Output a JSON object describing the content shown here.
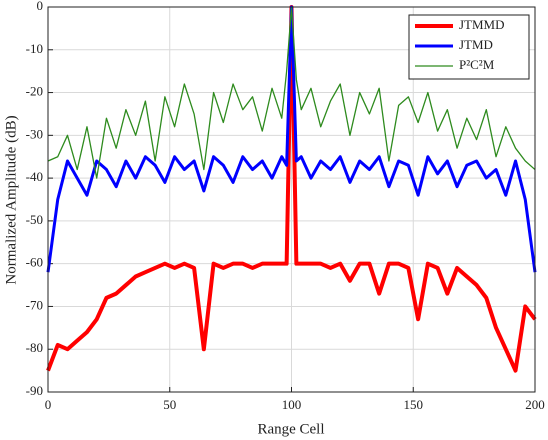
{
  "chart_data": {
    "type": "line",
    "xlabel": "Range Cell",
    "ylabel": "Normalized Amplitude (dB)",
    "x": [
      0,
      4,
      8,
      12,
      16,
      20,
      24,
      28,
      32,
      36,
      40,
      44,
      48,
      52,
      56,
      60,
      64,
      68,
      72,
      76,
      80,
      84,
      88,
      92,
      96,
      98,
      100,
      102,
      104,
      108,
      112,
      116,
      120,
      124,
      128,
      132,
      136,
      140,
      144,
      148,
      152,
      156,
      160,
      164,
      168,
      172,
      176,
      180,
      184,
      188,
      192,
      196,
      200
    ],
    "series": [
      {
        "name": "JTMMD",
        "color": "#ff0000",
        "width": 4,
        "values": [
          -85,
          -79,
          -80,
          -78,
          -76,
          -73,
          -68,
          -67,
          -65,
          -63,
          -62,
          -61,
          -60,
          -61,
          -60,
          -61,
          -80,
          -60,
          -61,
          -60,
          -60,
          -61,
          -60,
          -60,
          -60,
          -60,
          0,
          -60,
          -60,
          -60,
          -60,
          -61,
          -60,
          -64,
          -60,
          -60,
          -67,
          -60,
          -60,
          -61,
          -73,
          -60,
          -61,
          -67,
          -61,
          -63,
          -65,
          -68,
          -75,
          -80,
          -85,
          -70,
          -73
        ]
      },
      {
        "name": "JTMD",
        "color": "#0000ff",
        "width": 3,
        "values": [
          -62,
          -45,
          -36,
          -40,
          -44,
          -36,
          -38,
          -42,
          -36,
          -40,
          -35,
          -37,
          -41,
          -35,
          -38,
          -36,
          -43,
          -35,
          -37,
          -41,
          -35,
          -38,
          -36,
          -40,
          -35,
          -37,
          0,
          -36,
          -35,
          -40,
          -36,
          -38,
          -35,
          -41,
          -36,
          -38,
          -35,
          -42,
          -36,
          -37,
          -44,
          -35,
          -39,
          -36,
          -42,
          -37,
          -36,
          -40,
          -38,
          -44,
          -36,
          -45,
          -62
        ]
      },
      {
        "name": "P²C²M",
        "color": "#2e8b1e",
        "width": 1.3,
        "values": [
          -36,
          -35,
          -30,
          -38,
          -28,
          -40,
          -26,
          -33,
          -24,
          -30,
          -22,
          -36,
          -21,
          -28,
          -18,
          -25,
          -38,
          -20,
          -27,
          -18,
          -24,
          -21,
          -29,
          -19,
          -26,
          -15,
          0,
          -17,
          -24,
          -19,
          -28,
          -22,
          -18,
          -30,
          -20,
          -25,
          -19,
          -36,
          -23,
          -21,
          -27,
          -20,
          -29,
          -24,
          -33,
          -26,
          -31,
          -24,
          -35,
          -28,
          -33,
          -36,
          -38
        ]
      }
    ],
    "xlim": [
      0,
      200
    ],
    "xticks": [
      0,
      50,
      100,
      150,
      200
    ],
    "ylim": [
      -90,
      0
    ],
    "yticks": [
      -90,
      -80,
      -70,
      -60,
      -50,
      -40,
      -30,
      -20,
      -10,
      0
    ],
    "grid": true,
    "legend": "upper right"
  }
}
